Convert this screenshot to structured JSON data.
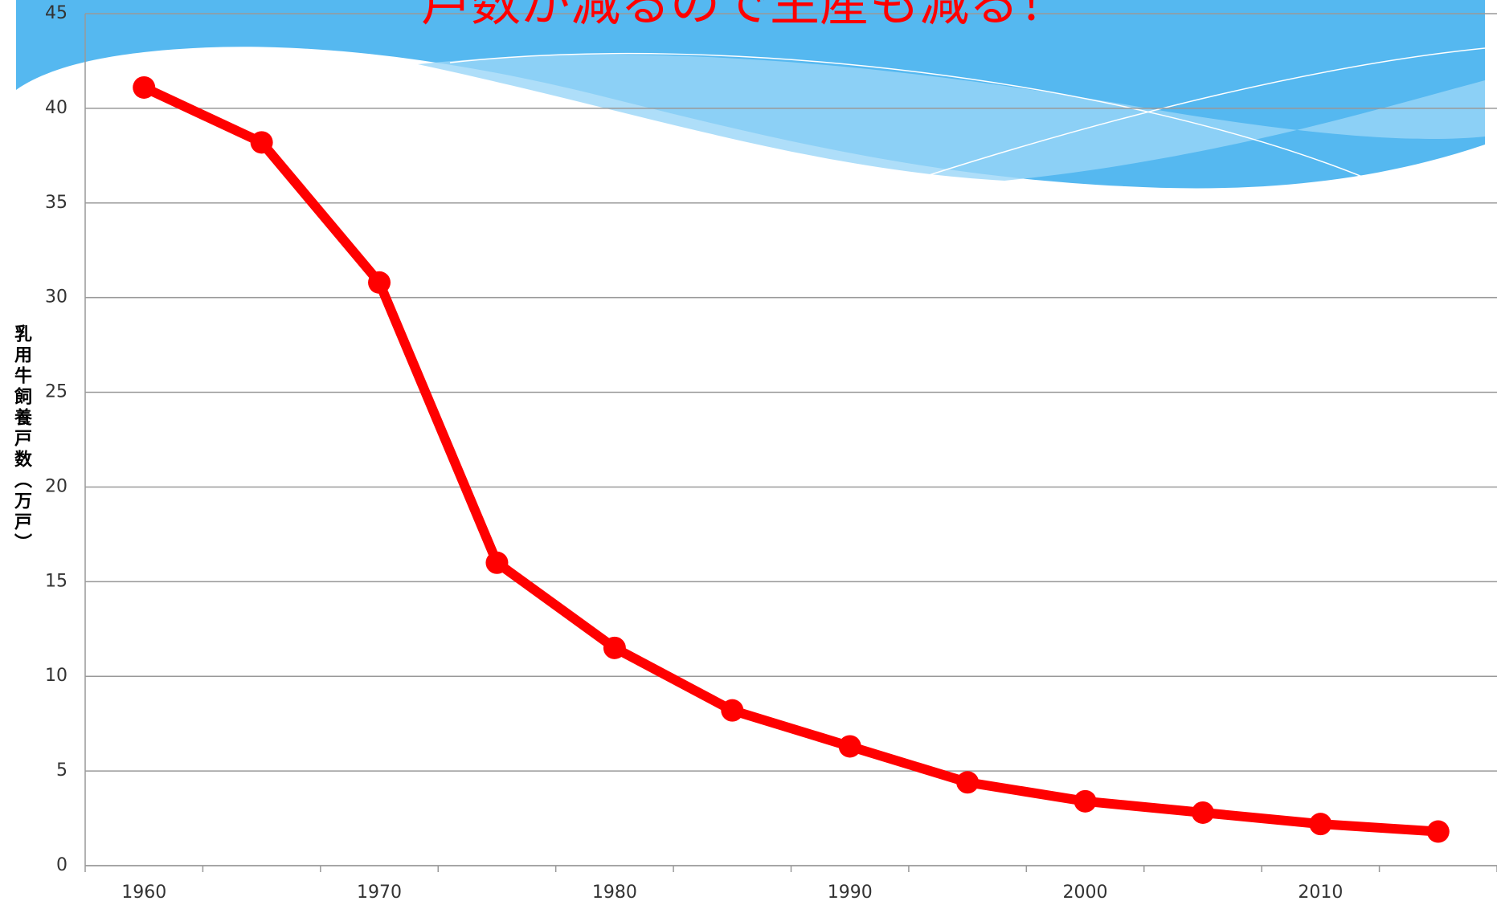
{
  "chart_data": {
    "type": "line",
    "title": "戸数が減るので生産も減る！",
    "y_label": "乳用牛飼養戸数（万戸）",
    "categories": [
      "1960",
      null,
      "1970",
      null,
      "1980",
      null,
      "1990",
      null,
      "2000",
      null,
      "2010",
      null
    ],
    "series": [
      {
        "name": "乳用牛飼養戸数",
        "color": "#ff0000",
        "values": [
          41.1,
          38.2,
          30.8,
          16.0,
          11.5,
          8.2,
          6.3,
          4.4,
          3.4,
          2.8,
          2.2,
          1.8
        ]
      }
    ],
    "ylim": [
      0,
      45
    ],
    "yticks": [
      0,
      5,
      10,
      15,
      20,
      25,
      30,
      35,
      40,
      45
    ],
    "grid": true
  }
}
